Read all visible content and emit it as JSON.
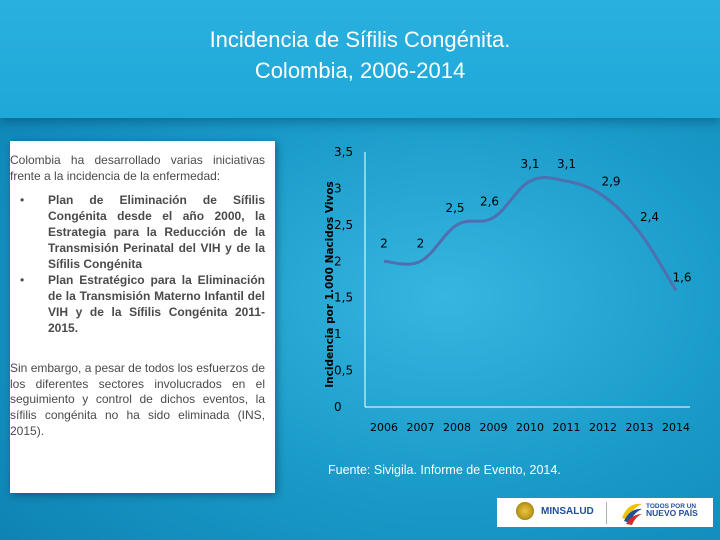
{
  "header": {
    "title_line1": "Incidencia de Sífilis Congénita.",
    "title_line2": "Colombia, 2006-2014"
  },
  "sidebar": {
    "intro": "Colombia ha desarrollado varias iniciativas frente a la incidencia de la enfermedad:",
    "bullet_glyph": "•",
    "bullets": [
      "Plan de Eliminación de Sífilis Congénita desde el año 2000, la Estrategia para la Reducción de la Transmisión Perinatal del VIH y de la Sífilis Congénita",
      "Plan Estratégico para la Eliminación de la Transmisión Materno Infantil del VIH y de la Sífilis Congénita 2011-2015."
    ],
    "outro": "Sin embargo, a pesar de todos los esfuerzos de los diferentes sectores involucrados en el seguimiento y control de dichos eventos, la sífilis congénita no ha sido eliminada (INS, 2015)."
  },
  "chart_data": {
    "type": "line",
    "title": "",
    "xlabel": "",
    "ylabel": "Incidencia por 1.000 Nacidos Vivos",
    "x": [
      "2006",
      "2007",
      "2008",
      "2009",
      "2010",
      "2011",
      "2012",
      "2013",
      "2014"
    ],
    "series": [
      {
        "values": [
          2,
          2,
          2.5,
          2.6,
          3.1,
          3.1,
          2.9,
          2.4,
          1.6
        ],
        "data_labels": [
          "2",
          "2",
          "2,5",
          "2,6",
          "3,1",
          "3,1",
          "2,9",
          "2,4",
          "1,6"
        ]
      }
    ],
    "yticks": [
      0,
      0.5,
      1,
      1.5,
      2,
      2.5,
      3,
      3.5
    ],
    "ytick_labels": [
      "0",
      "0,5",
      "1",
      "1,5",
      "2",
      "2,5",
      "3",
      "3,5"
    ],
    "ylim": [
      0,
      3.5
    ],
    "grid": false,
    "legend": "none",
    "line_color": "#4f6fb0"
  },
  "source": "Fuente: Sivigila. Informe de Evento, 2014.",
  "logos": {
    "minsalud": "MINSALUD",
    "todos_line1": "TODOS POR UN",
    "todos_line2": "NUEVO PAÍS"
  }
}
